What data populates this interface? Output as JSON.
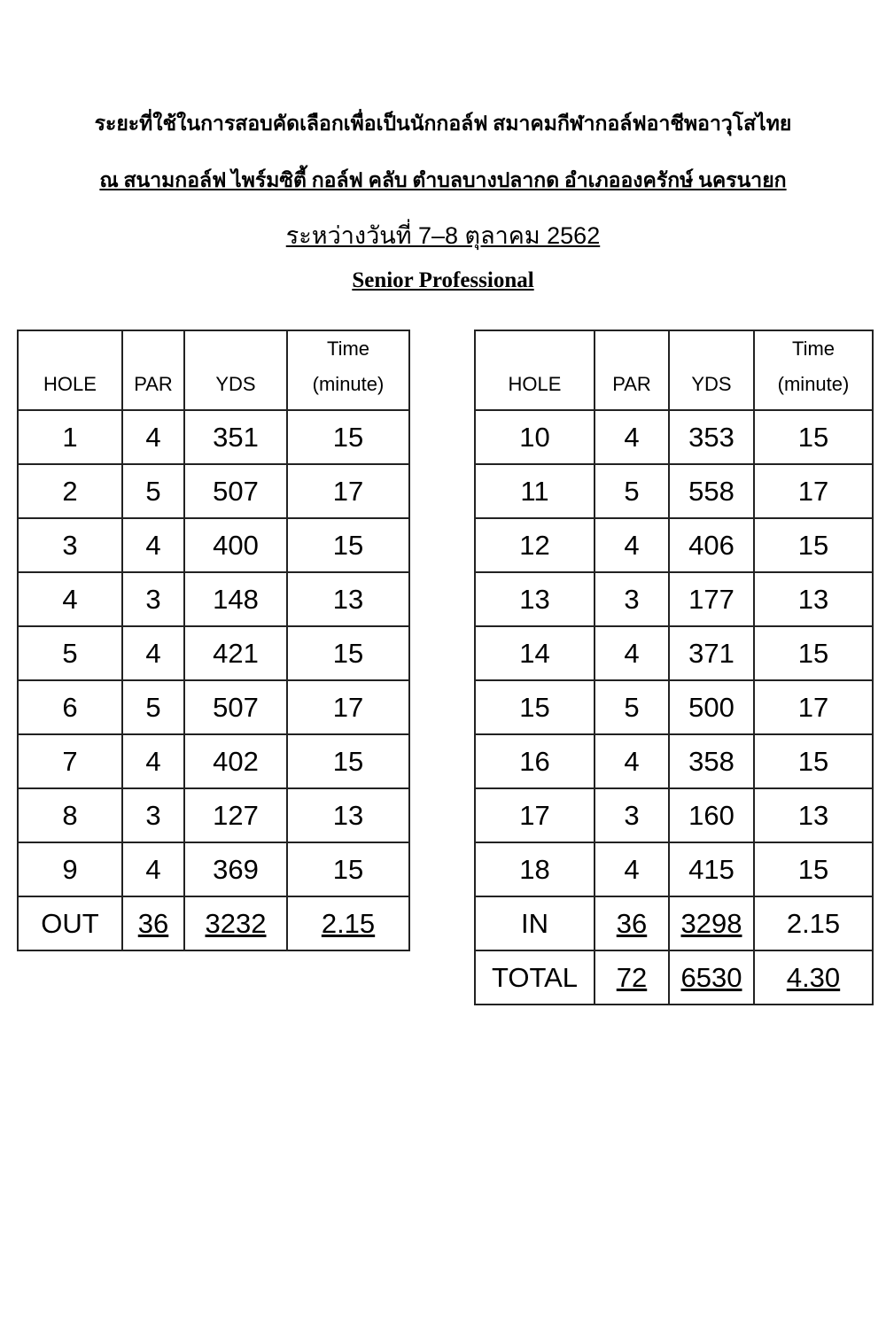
{
  "header": {
    "line1": "ระยะที่ใช้ในการสอบคัดเลือกเพื่อเป็นนักกอล์ฟ สมาคมกีฬากอล์ฟอาชีพอาวุโสไทย",
    "line2": "ณ  สนามกอล์ฟ ไพร์มซิตี้ กอล์ฟ คลับ ตำบลบางปลากด อำเภอองครักษ์ นครนายก",
    "line3": "ระหว่างวันที่   7–8 ตุลาคม 2562",
    "line4": "Senior Professional"
  },
  "tables": [
    {
      "header": {
        "hole": "HOLE",
        "par": "PAR",
        "yds": "YDS",
        "time": "Time",
        "time_unit": "(minute)"
      },
      "rows": [
        [
          "1",
          "4",
          "351",
          "15"
        ],
        [
          "2",
          "5",
          "507",
          "17"
        ],
        [
          "3",
          "4",
          "400",
          "15"
        ],
        [
          "4",
          "3",
          "148",
          "13"
        ],
        [
          "5",
          "4",
          "421",
          "15"
        ],
        [
          "6",
          "5",
          "507",
          "17"
        ],
        [
          "7",
          "4",
          "402",
          "15"
        ],
        [
          "8",
          "3",
          "127",
          "13"
        ],
        [
          "9",
          "4",
          "369",
          "15"
        ]
      ],
      "totals": [
        [
          "OUT",
          "36",
          "3232",
          "2.15"
        ]
      ]
    },
    {
      "header": {
        "hole": "HOLE",
        "par": "PAR",
        "yds": "YDS",
        "time": "Time",
        "time_unit": "(minute)"
      },
      "rows": [
        [
          "10",
          "4",
          "353",
          "15"
        ],
        [
          "11",
          "5",
          "558",
          "17"
        ],
        [
          "12",
          "4",
          "406",
          "15"
        ],
        [
          "13",
          "3",
          "177",
          "13"
        ],
        [
          "14",
          "4",
          "371",
          "15"
        ],
        [
          "15",
          "5",
          "500",
          "17"
        ],
        [
          "16",
          "4",
          "358",
          "15"
        ],
        [
          "17",
          "3",
          "160",
          "13"
        ],
        [
          "18",
          "4",
          "415",
          "15"
        ]
      ],
      "totals": [
        [
          "IN",
          "36",
          "3298",
          "2.15"
        ],
        [
          "TOTAL",
          "72",
          "6530",
          "4.30"
        ]
      ]
    }
  ]
}
